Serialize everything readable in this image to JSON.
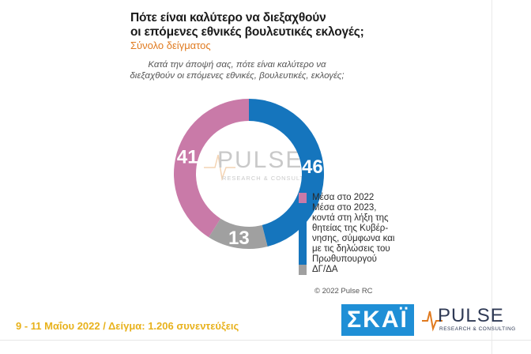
{
  "title_lines": [
    "Πότε είναι καλύτερο να διεξαχθούν",
    "οι επόμενες εθνικές βουλευτικές εκλογές;"
  ],
  "subtitle": "Σύνολο δείγματος",
  "question_lines": [
    "Κατά την άποψή σας, πότε είναι καλύτερο να",
    "διεξαχθούν οι επόμενες εθνικές, βουλευτικές, εκλογές;"
  ],
  "watermark": {
    "word": "PULSE",
    "sub": "RESEARCH & CONSULTING"
  },
  "chart_data": {
    "type": "pie",
    "donut": true,
    "categories": [
      "Μέσα στο 2022",
      "Μέσα στο 2023, κοντά στη λήξη της θητείας της Κυβέρνησης, σύμφωνα και με τις δηλώσεις του Πρωθυπουργού",
      "ΔΓ/ΔΑ"
    ],
    "values": [
      41,
      46,
      13
    ],
    "colors": [
      "#c97aa8",
      "#1575bd",
      "#a0a0a0"
    ],
    "legend_placement": "right"
  },
  "legend": [
    {
      "lines": [
        "Μέσα στο 2022"
      ],
      "color": "#c97aa8"
    },
    {
      "lines": [
        "Μέσα στο 2023,",
        "κοντά στη λήξη της",
        "θητείας της Κυβέρ-",
        "νησης, σύμφωνα και",
        "με τις δηλώσεις του",
        "Πρωθυπουργού"
      ],
      "color": "#1575bd"
    },
    {
      "lines": [
        "ΔΓ/ΔΑ"
      ],
      "color": "#a0a0a0"
    }
  ],
  "copyright": "© 2022 Pulse RC",
  "footer": "9 - 11  Μαΐου  2022  /  Δείγμα:  1.206 συνεντεύξεις",
  "logos": {
    "skai": "ΣΚΑΪ",
    "pulse_word": "PULSE",
    "pulse_sub": "RESEARCH & CONSULTING"
  }
}
